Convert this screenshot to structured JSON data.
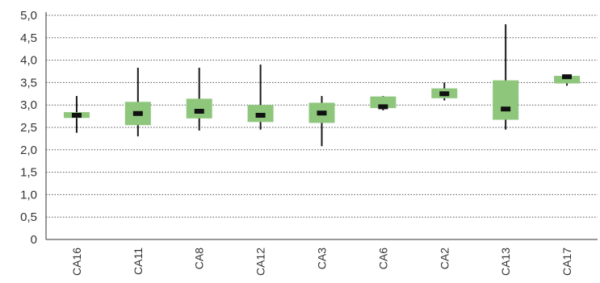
{
  "chart_data": {
    "type": "boxplot",
    "categories": [
      "CA16",
      "CA11",
      "CA8",
      "CA12",
      "CA3",
      "CA6",
      "CA2",
      "CA13",
      "CA17"
    ],
    "series": [
      {
        "min": [
          2.38,
          2.3,
          2.43,
          2.45,
          2.08,
          2.88,
          3.1,
          2.45,
          3.43
        ],
        "q1": [
          2.71,
          2.55,
          2.7,
          2.62,
          2.6,
          2.93,
          3.15,
          2.67,
          3.48
        ],
        "median": [
          2.77,
          2.81,
          2.86,
          2.77,
          2.82,
          2.96,
          3.25,
          2.91,
          3.63
        ],
        "q3": [
          2.84,
          3.07,
          3.14,
          3.0,
          3.05,
          3.19,
          3.37,
          3.55,
          3.65
        ],
        "max": [
          3.2,
          3.83,
          3.83,
          3.9,
          3.2,
          3.2,
          3.5,
          4.8,
          3.65
        ]
      }
    ],
    "ylim": [
      0,
      5
    ],
    "yticks": [
      "0",
      "0,5",
      "1,0",
      "1,5",
      "2,0",
      "2,5",
      "3,0",
      "3,5",
      "4,0",
      "4,5",
      "5,0"
    ],
    "ytick_values": [
      0,
      0.5,
      1,
      1.5,
      2,
      2.5,
      3,
      3.5,
      4,
      4.5,
      5
    ],
    "grid": true,
    "grid_style": "dotted",
    "colors": {
      "box": "#8ec77c",
      "whisker": "#1a1a1a",
      "median": "#111111",
      "grid": "#555555",
      "axis": "#333333",
      "text": "#333333"
    }
  }
}
